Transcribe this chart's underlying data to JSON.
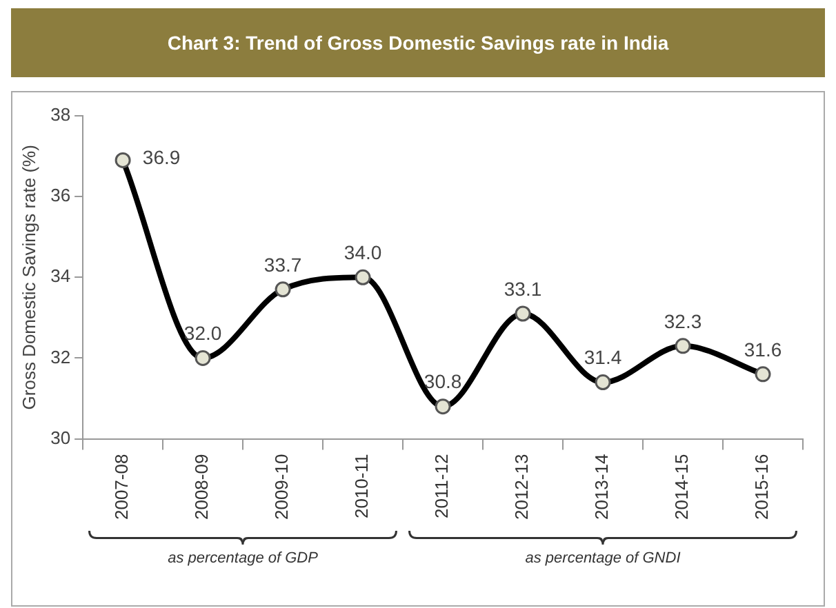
{
  "chart_data": {
    "type": "line",
    "title": "Chart 3: Trend of Gross Domestic Savings rate in India",
    "ylabel": "Gross Domestic Savings rate (%)",
    "categories": [
      "2007-08",
      "2008-09",
      "2009-10",
      "2010-11",
      "2011-12",
      "2012-13",
      "2013-14",
      "2014-15",
      "2015-16"
    ],
    "series": [
      {
        "color": "#000000",
        "values": [
          36.9,
          32.0,
          33.7,
          34.0,
          30.8,
          33.1,
          31.4,
          32.3,
          31.6
        ],
        "value_labels": [
          "36.9",
          "32.0",
          "33.7",
          "34.0",
          "30.8",
          "33.1",
          "31.4",
          "32.3",
          "31.6"
        ]
      }
    ],
    "ylim": [
      30,
      38
    ],
    "yticks": [
      30,
      32,
      34,
      36,
      38
    ],
    "grid": false,
    "legend": false,
    "marker": "circle",
    "line_style": "solid",
    "annotations": [
      "as percentage of GDP",
      "as percentage of GNDI"
    ]
  }
}
